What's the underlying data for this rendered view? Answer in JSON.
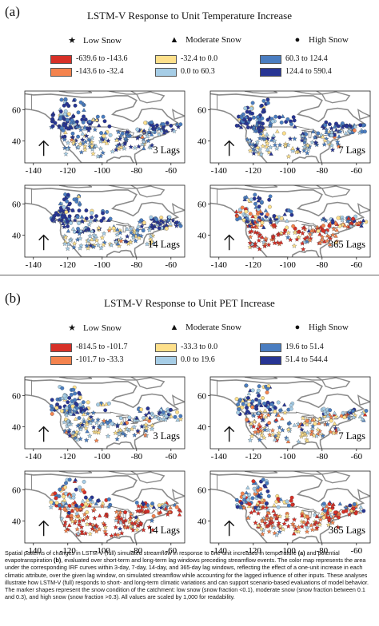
{
  "panel_a": {
    "label": "(a)",
    "title": "LSTM-V Response to Unit Temperature Increase",
    "markers": {
      "low": "Low Snow",
      "moderate": "Moderate Snow",
      "high": "High Snow"
    },
    "legend": [
      {
        "label": "-639.6 to -143.6",
        "color": "#d73027"
      },
      {
        "label": "-143.6 to -32.4",
        "color": "#f4834e"
      },
      {
        "label": "-32.4 to 0.0",
        "color": "#fee08b"
      },
      {
        "label": "0.0 to 60.3",
        "color": "#a6cde6"
      },
      {
        "label": "60.3 to 124.4",
        "color": "#4a7dc0"
      },
      {
        "label": "124.4 to 590.4",
        "color": "#273594"
      }
    ],
    "maps": [
      {
        "lag": "3 Lags"
      },
      {
        "lag": "7 Lags"
      },
      {
        "lag": "14 Lags"
      },
      {
        "lag": "365 Lags"
      }
    ]
  },
  "panel_b": {
    "label": "(b)",
    "title": "LSTM-V Response to Unit PET Increase",
    "markers": {
      "low": "Low Snow",
      "moderate": "Moderate Snow",
      "high": "High Snow"
    },
    "legend": [
      {
        "label": "-814.5 to -101.7",
        "color": "#d73027"
      },
      {
        "label": "-101.7 to -33.3",
        "color": "#f4834e"
      },
      {
        "label": "-33.3 to 0.0",
        "color": "#fee08b"
      },
      {
        "label": "0.0 to 19.6",
        "color": "#a6cde6"
      },
      {
        "label": "19.6 to 51.4",
        "color": "#4a7dc0"
      },
      {
        "label": "51.4 to 544.4",
        "color": "#273594"
      }
    ],
    "maps": [
      {
        "lag": "3 Lags"
      },
      {
        "lag": "7 Lags"
      },
      {
        "lag": "14 Lags"
      },
      {
        "lag": "365 Lags"
      }
    ]
  },
  "axes": {
    "x_ticks": [
      "-140",
      "-120",
      "-100",
      "-80",
      "-60"
    ],
    "y_ticks": [
      "60",
      "40"
    ]
  },
  "caption": {
    "part1": "Spatial patterns of changes in LSTM-V (full) simulated streamflow in response to one-unit increases in temperature ",
    "bold1": "(a)",
    "part2": " and potential evapotranspiration ",
    "bold2": "(b)",
    "part3": ", evaluated over short-term and long-term lag windows preceding streamflow events. The color map represents the area under the corresponding IRF curves within 3-day, 7-day, 14-day, and 365-day lag windows, reflecting the effect of a one-unit increase in each climatic attribute, over the given lag window, on simulated streamflow while accounting for the lagged influence of other inputs. These analyses illustrate how LSTM-V (full) responds to short- and long-term climatic variations and can support scenario-based evaluations of model behavior. The marker shapes represent the snow condition of the catchment: low snow (snow fraction <0.1), moderate snow (snow fraction between 0.1 and 0.3), and high snow (snow fraction >0.3). All values are scaled by 1,000 for readability."
  }
}
